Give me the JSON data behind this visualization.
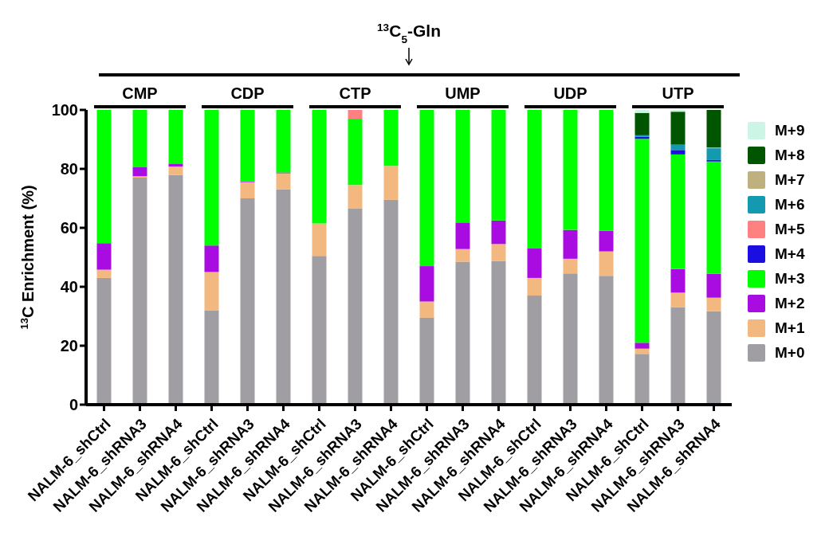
{
  "chart_data": {
    "type": "bar",
    "stacked": true,
    "annotations": [
      "$^{13}$C$_{5}$-Gln",
      "CMP",
      "CDP",
      "CTP",
      "UMP",
      "UDP",
      "UTP"
    ],
    "ylabel": "$^{13}$C Enrichment (%)",
    "categories": [
      "NALM-6_shCtrl",
      "NALM-6_shRNA3",
      "NALM-6_shRNA4",
      "NALM-6_shCtrl",
      "NALM-6_shRNA3",
      "NALM-6_shRNA4",
      "NALM-6_shCtrl",
      "NALM-6_shRNA3",
      "NALM-6_shRNA4",
      "NALM-6_shCtrl",
      "NALM-6_shRNA3",
      "NALM-6_shRNA4",
      "NALM-6_shCtrl",
      "NALM-6_shRNA3",
      "NALM-6_shRNA4",
      "NALM-6_shCtrl",
      "NALM-6_shRNA3",
      "NALM-6_shRNA4"
    ],
    "series": [
      {
        "name": "M+0",
        "color": "#a09ea3",
        "values": [
          43,
          77,
          78,
          32,
          70,
          73,
          50.5,
          66.5,
          69.5,
          29.5,
          48.5,
          48.8,
          37,
          44.5,
          43.7,
          17.2,
          33.1,
          31.7
        ]
      },
      {
        "name": "M+1",
        "color": "#f2b880",
        "values": [
          2.8,
          0.5,
          2.8,
          13,
          5.5,
          5.5,
          11,
          8,
          11.5,
          5.5,
          4.3,
          5.7,
          6,
          5,
          8.3,
          1.8,
          4.9,
          4.6
        ]
      },
      {
        "name": "M+2",
        "color": "#a80ce0",
        "values": [
          9,
          3.2,
          1,
          9,
          0.3,
          0.3,
          0,
          0,
          0,
          12,
          9,
          8,
          10,
          9.8,
          7,
          2,
          8,
          8.1
        ]
      },
      {
        "name": "M+3",
        "color": "#00ff00",
        "values": [
          45.2,
          19.3,
          18.2,
          46,
          24.2,
          21.2,
          38.5,
          22.5,
          19,
          53,
          38.2,
          37.5,
          47,
          40.7,
          41,
          69.2,
          38.9,
          38.1
        ]
      },
      {
        "name": "M+4",
        "color": "#1a0fe0",
        "values": [
          0,
          0,
          0,
          0,
          0,
          0,
          0,
          0,
          0,
          0,
          0,
          0,
          0,
          0,
          0,
          0.7,
          1.5,
          0.5
        ]
      },
      {
        "name": "M+5",
        "color": "#ff8080",
        "values": [
          0,
          0,
          0,
          0,
          0,
          0,
          0,
          3,
          0,
          0,
          0,
          0,
          0,
          0,
          0,
          0,
          0,
          0
        ]
      },
      {
        "name": "M+6",
        "color": "#1399b0",
        "values": [
          0,
          0,
          0,
          0,
          0,
          0,
          0,
          0,
          0,
          0,
          0,
          0,
          0,
          0,
          0,
          0.5,
          1.8,
          4
        ]
      },
      {
        "name": "M+7",
        "color": "#bfb080",
        "values": [
          0,
          0,
          0,
          0,
          0,
          0,
          0,
          0,
          0,
          0,
          0,
          0,
          0,
          0,
          0,
          0,
          0,
          0.3
        ]
      },
      {
        "name": "M+8",
        "color": "#005500",
        "values": [
          0,
          0,
          0,
          0,
          0,
          0,
          0,
          0,
          0,
          0,
          0,
          0,
          0,
          0,
          0,
          7.6,
          11.2,
          12.7
        ]
      },
      {
        "name": "M+9",
        "color": "#ccf5e6",
        "values": [
          0,
          0,
          0,
          0,
          0,
          0,
          0,
          0,
          0,
          0,
          0,
          0,
          0,
          0,
          0,
          1,
          0.6,
          0
        ]
      }
    ],
    "ylim": [
      0,
      100
    ],
    "yticks": [
      0,
      20,
      40,
      60,
      80,
      100
    ],
    "grid": false,
    "legend": "right"
  }
}
